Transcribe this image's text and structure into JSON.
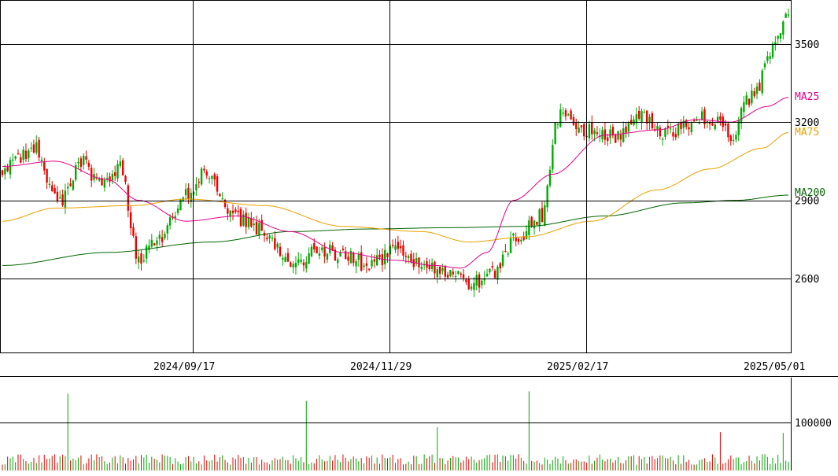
{
  "chart_data": {
    "type": "candlestick",
    "x_axis": {
      "date_labels": [
        "2024/09/17",
        "2024/11/29",
        "2025/02/17",
        "2025/05/01"
      ]
    },
    "price_axis": {
      "tick_labels": [
        "3500",
        "3200",
        "2900",
        "2600"
      ],
      "ylim": [
        2320,
        3660
      ]
    },
    "volume_axis": {
      "tick_labels": [
        "100000"
      ],
      "ylim": [
        0,
        175000
      ]
    },
    "legend": [
      {
        "label": "MA25",
        "color": "#e0008c"
      },
      {
        "label": "MA75",
        "color": "#e8a000"
      },
      {
        "label": "MA200",
        "color": "#006400"
      }
    ],
    "colors": {
      "up": "#00aa00",
      "down": "#ee0000",
      "ma25": "#e0008c",
      "ma75": "#e8a000",
      "ma200": "#006400",
      "grid": "#000000",
      "background": "#ffffff"
    },
    "series_close_approx": [
      [
        0,
        3020
      ],
      [
        12,
        3100
      ],
      [
        22,
        2890
      ],
      [
        30,
        3050
      ],
      [
        38,
        2960
      ],
      [
        45,
        3020
      ],
      [
        52,
        2680
      ],
      [
        60,
        2760
      ],
      [
        70,
        2920
      ],
      [
        78,
        3010
      ],
      [
        86,
        2870
      ],
      [
        92,
        2820
      ],
      [
        100,
        2780
      ],
      [
        110,
        2640
      ],
      [
        120,
        2720
      ],
      [
        130,
        2690
      ],
      [
        140,
        2650
      ],
      [
        150,
        2710
      ],
      [
        160,
        2660
      ],
      [
        170,
        2620
      ],
      [
        178,
        2580
      ],
      [
        188,
        2620
      ],
      [
        196,
        2760
      ],
      [
        206,
        2840
      ],
      [
        212,
        3220
      ],
      [
        224,
        3170
      ],
      [
        234,
        3150
      ],
      [
        244,
        3220
      ],
      [
        254,
        3150
      ],
      [
        262,
        3200
      ],
      [
        270,
        3220
      ],
      [
        278,
        3150
      ],
      [
        286,
        3300
      ],
      [
        296,
        3520
      ],
      [
        300,
        3620
      ]
    ],
    "ma25_approx": [
      [
        0,
        3030
      ],
      [
        20,
        3050
      ],
      [
        40,
        2980
      ],
      [
        52,
        2900
      ],
      [
        70,
        2820
      ],
      [
        90,
        2840
      ],
      [
        110,
        2780
      ],
      [
        130,
        2700
      ],
      [
        150,
        2670
      ],
      [
        165,
        2650
      ],
      [
        175,
        2640
      ],
      [
        185,
        2700
      ],
      [
        195,
        2900
      ],
      [
        210,
        3000
      ],
      [
        230,
        3150
      ],
      [
        250,
        3170
      ],
      [
        265,
        3210
      ],
      [
        278,
        3200
      ],
      [
        292,
        3260
      ],
      [
        300,
        3295
      ]
    ],
    "ma75_approx": [
      [
        0,
        2820
      ],
      [
        20,
        2870
      ],
      [
        50,
        2880
      ],
      [
        70,
        2905
      ],
      [
        100,
        2880
      ],
      [
        130,
        2800
      ],
      [
        160,
        2780
      ],
      [
        178,
        2740
      ],
      [
        200,
        2760
      ],
      [
        225,
        2820
      ],
      [
        250,
        2940
      ],
      [
        270,
        3020
      ],
      [
        290,
        3100
      ],
      [
        300,
        3160
      ]
    ],
    "ma200_approx": [
      [
        0,
        2650
      ],
      [
        40,
        2700
      ],
      [
        80,
        2740
      ],
      [
        110,
        2780
      ],
      [
        140,
        2790
      ],
      [
        170,
        2795
      ],
      [
        200,
        2800
      ],
      [
        230,
        2840
      ],
      [
        260,
        2890
      ],
      [
        280,
        2900
      ],
      [
        300,
        2920
      ]
    ],
    "volume_spikes": [
      {
        "index": 25,
        "volume": 160000
      },
      {
        "index": 116,
        "volume": 145000
      },
      {
        "index": 166,
        "volume": 90000
      },
      {
        "index": 201,
        "volume": 165000
      },
      {
        "index": 274,
        "volume": 80000
      },
      {
        "index": 298,
        "volume": 78000
      }
    ]
  }
}
